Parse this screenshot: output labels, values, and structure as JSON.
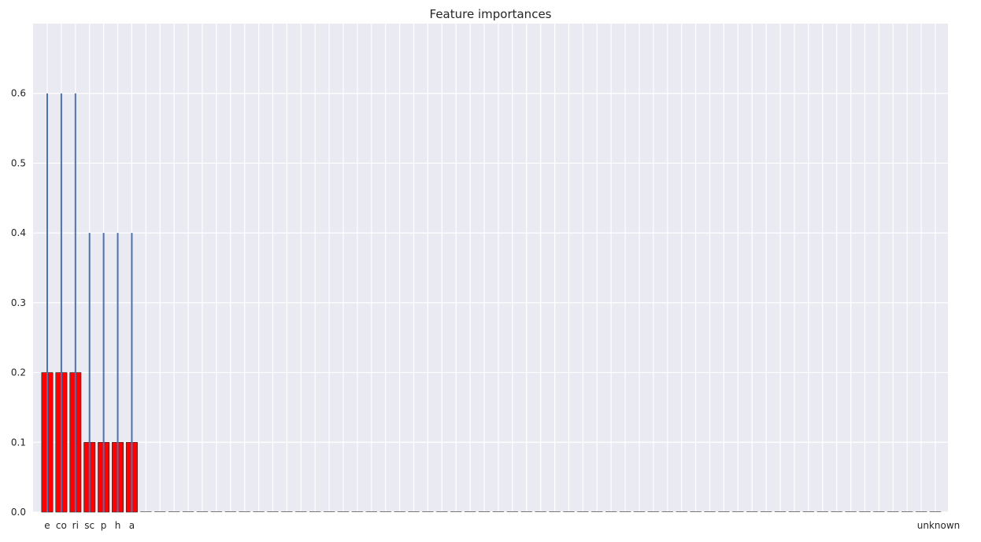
{
  "chart_data": {
    "type": "bar",
    "title": "Feature importances",
    "xlabel": "",
    "ylabel": "",
    "ylim": [
      0,
      0.7
    ],
    "yticks": [
      "0.0",
      "0.1",
      "0.2",
      "0.3",
      "0.4",
      "0.5",
      "0.6"
    ],
    "grid": true,
    "bar_color": "#ff0000",
    "errorbar_color": "#4c72b0",
    "background_color": "#eaeaf2",
    "categories_visible_left": [
      "e",
      "co",
      "ri",
      "sc",
      "p",
      "h",
      "a"
    ],
    "categories_visible_right": [
      "unknown"
    ],
    "category_count": 64,
    "values": [
      0.2,
      0.2,
      0.2,
      0.1,
      0.1,
      0.1,
      0.1,
      0,
      0,
      0,
      0,
      0,
      0,
      0,
      0,
      0,
      0,
      0,
      0,
      0,
      0,
      0,
      0,
      0,
      0,
      0,
      0,
      0,
      0,
      0,
      0,
      0,
      0,
      0,
      0,
      0,
      0,
      0,
      0,
      0,
      0,
      0,
      0,
      0,
      0,
      0,
      0,
      0,
      0,
      0,
      0,
      0,
      0,
      0,
      0,
      0,
      0,
      0,
      0,
      0,
      0,
      0,
      0,
      0
    ],
    "errors": [
      0.4,
      0.4,
      0.4,
      0.3,
      0.3,
      0.3,
      0.3,
      0,
      0,
      0,
      0,
      0,
      0,
      0,
      0,
      0,
      0,
      0,
      0,
      0,
      0,
      0,
      0,
      0,
      0,
      0,
      0,
      0,
      0,
      0,
      0,
      0,
      0,
      0,
      0,
      0,
      0,
      0,
      0,
      0,
      0,
      0,
      0,
      0,
      0,
      0,
      0,
      0,
      0,
      0,
      0,
      0,
      0,
      0,
      0,
      0,
      0,
      0,
      0,
      0,
      0,
      0,
      0,
      0
    ]
  }
}
